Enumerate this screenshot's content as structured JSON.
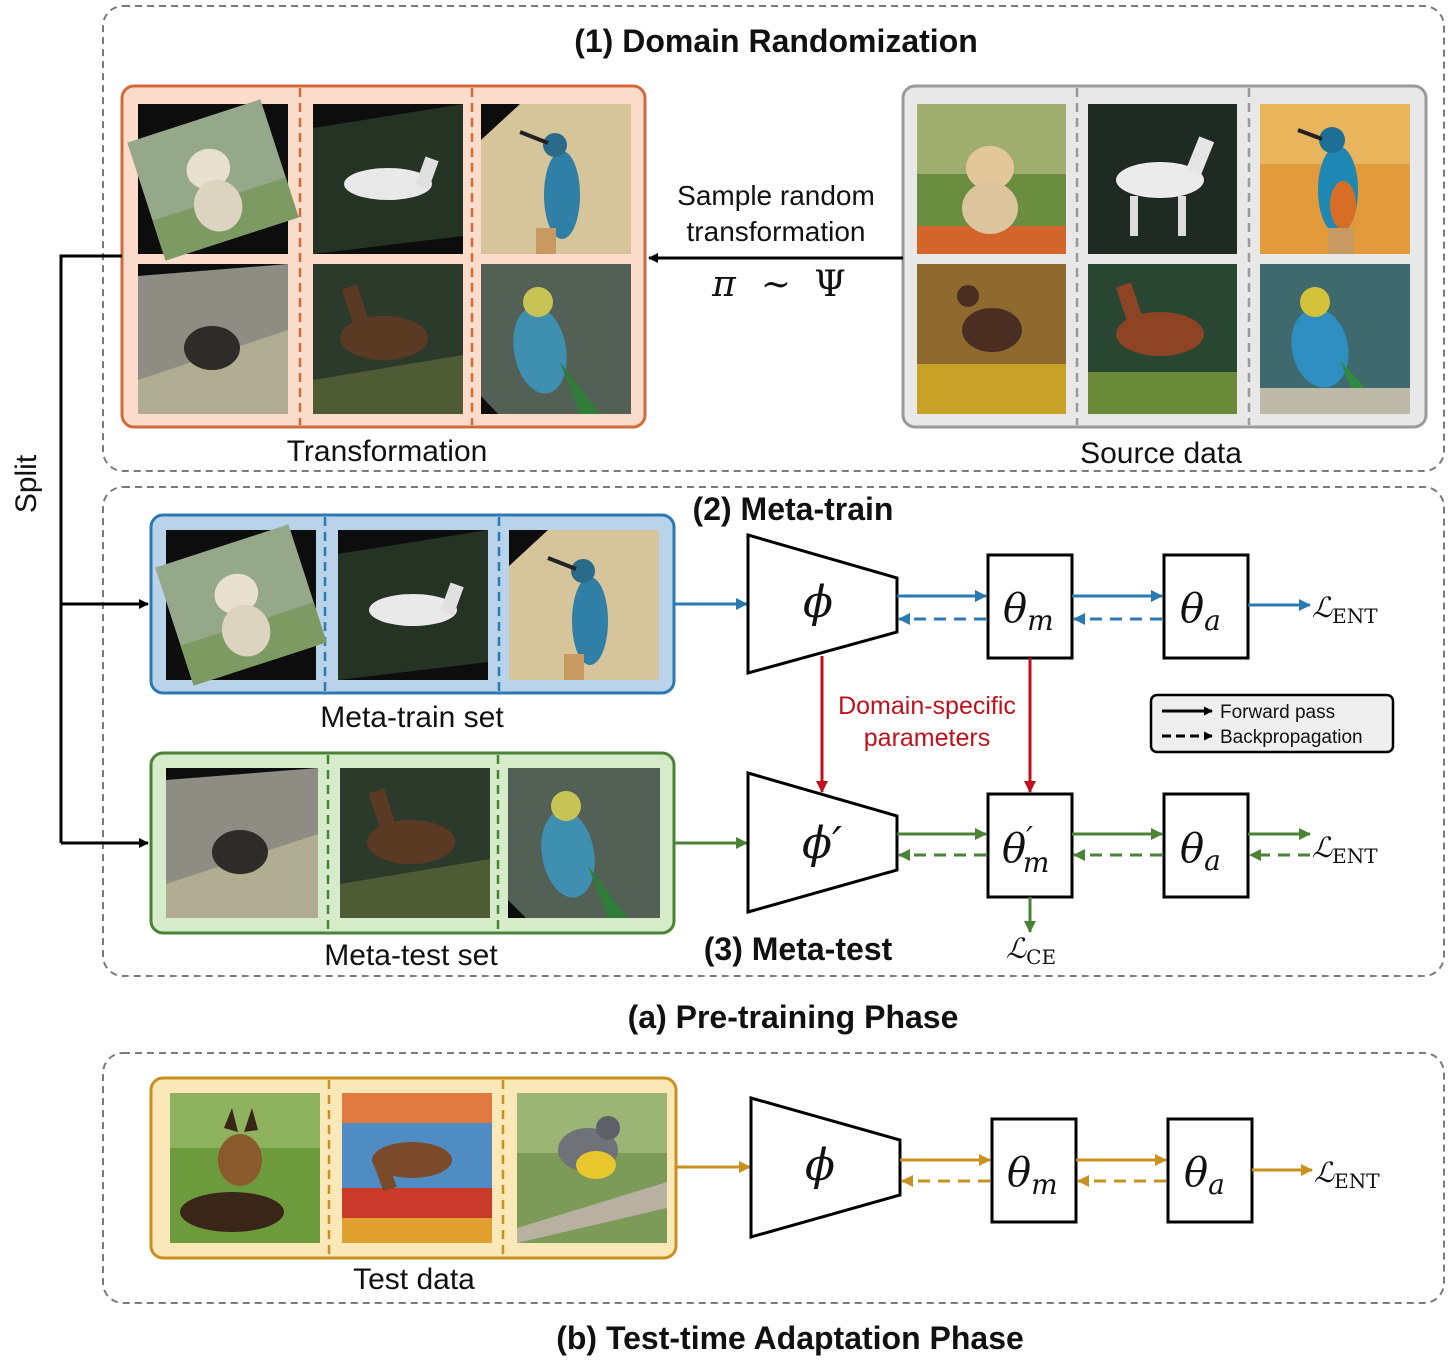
{
  "sections": {
    "domain_randomization": "(1) Domain Randomization",
    "meta_train": "(2) Meta-train",
    "meta_test": "(3) Meta-test",
    "pretraining_phase": "(a) Pre-training Phase",
    "tta_phase": "(b) Test-time Adaptation Phase"
  },
  "labels": {
    "transformation": "Transformation",
    "source_data": "Source data",
    "sample_line1": "Sample random",
    "sample_line2": "transformation",
    "split": "Split",
    "meta_train_set": "Meta-train set",
    "meta_test_set": "Meta-test set",
    "test_data": "Test data",
    "domain_specific_line1": "Domain-specific",
    "domain_specific_line2": "parameters"
  },
  "math": {
    "pi": "π",
    "sim": "∼",
    "psi": "Ψ",
    "phi": "ϕ",
    "phi_prime": "ϕ′",
    "theta": "θ",
    "sub_m": "m",
    "sub_a": "a",
    "prime": "′",
    "loss_L": "ℒ",
    "sub_ent": "ENT",
    "sub_ce": "CE"
  },
  "legend": {
    "forward": "Forward pass",
    "backward": "Backpropagation"
  },
  "colors": {
    "transformation_fill": "#fbdccb",
    "transformation_border": "#d06a3a",
    "source_fill": "#e8e8e8",
    "source_border": "#9a9a9a",
    "meta_train_fill": "#b9d3ea",
    "meta_train_border": "#2c79b2",
    "meta_test_fill": "#d6ebc9",
    "meta_test_border": "#4a8236",
    "test_fill": "#fbe8b8",
    "test_border": "#c8901f",
    "domain_specific": "#c0101c"
  },
  "images": {
    "transformation": [
      "puppy",
      "white-horse",
      "kingfisher",
      "dog-running",
      "brown-horse",
      "green-bird"
    ],
    "source": [
      "puppy",
      "white-horse",
      "kingfisher",
      "dog-running",
      "brown-horse",
      "green-bird"
    ],
    "meta_train": [
      "puppy",
      "white-horse",
      "kingfisher"
    ],
    "meta_test": [
      "dog-running",
      "brown-horse",
      "green-bird"
    ],
    "test": [
      "german-shepherd",
      "grazing-horse",
      "yellow-bird"
    ]
  }
}
